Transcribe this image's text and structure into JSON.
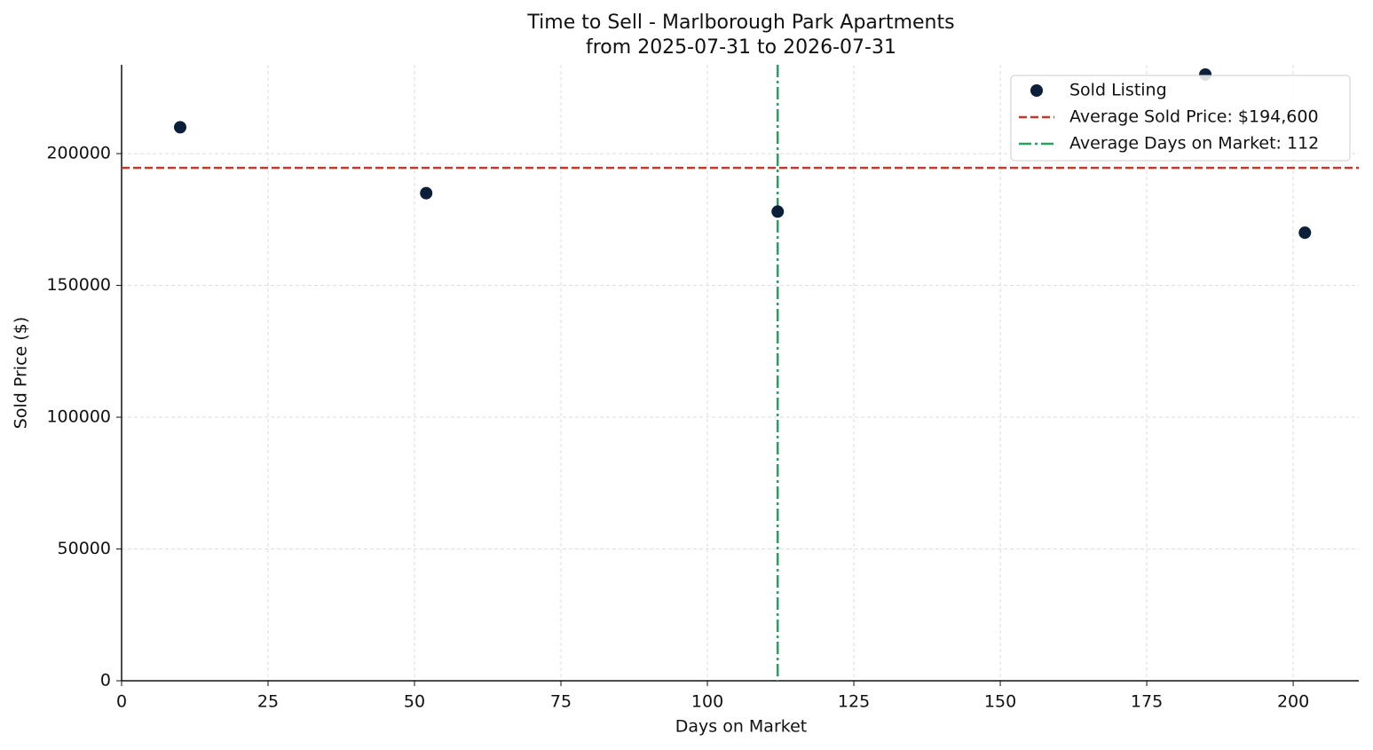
{
  "chart_data": {
    "type": "scatter",
    "title": "Time to Sell - Marlborough Park Apartments",
    "subtitle": "from 2025-07-31 to 2026-07-31",
    "x_label": "Days on Market",
    "y_label": "Sold Price ($)",
    "x": [
      10,
      52,
      112,
      185,
      202
    ],
    "series": [
      {
        "name": "Sold Listing",
        "color": "#0b1f3a",
        "values": [
          210000,
          185000,
          178000,
          230000,
          170000
        ]
      }
    ],
    "hline": {
      "value": 194600,
      "label": "Average Sold Price: $194,600",
      "color": "#c0392b"
    },
    "vline": {
      "value": 112,
      "label": "Average Days on Market: 112",
      "color": "#27a060"
    },
    "xlim": [
      0,
      211.2
    ],
    "ylim": [
      0,
      233700
    ],
    "xticks": [
      0,
      25,
      50,
      75,
      100,
      125,
      150,
      175,
      200
    ],
    "yticks": [
      0,
      50000,
      100000,
      150000,
      200000
    ],
    "grid": true,
    "legend": "upper right"
  }
}
